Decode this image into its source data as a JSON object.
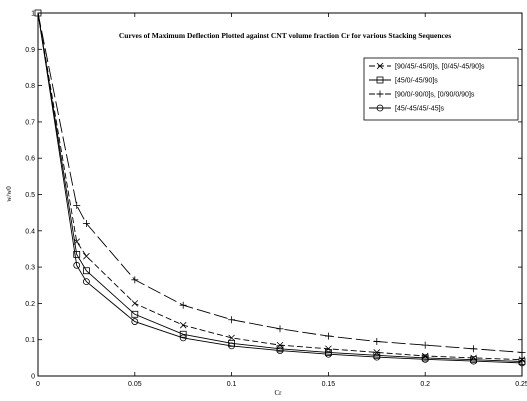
{
  "chart_data": {
    "type": "line",
    "title": "Curves of Maximum Deflection Plotted against CNT volume fraction Cr for various Stacking Sequences",
    "xlabel": "Cr",
    "ylabel": "w/w0",
    "xlim": [
      0,
      0.25
    ],
    "ylim": [
      0,
      1
    ],
    "xticks": [
      0,
      0.05,
      0.1,
      0.15,
      0.2,
      0.25
    ],
    "xtick_labels": [
      "0",
      "0.05",
      "0.1",
      "0.15",
      "0.2",
      "0.25"
    ],
    "yticks": [
      0,
      0.1,
      0.2,
      0.3,
      0.4,
      0.5,
      0.6,
      0.7,
      0.8,
      0.9,
      1
    ],
    "ytick_labels": [
      "0",
      "0.1",
      "0.2",
      "0.3",
      "0.4",
      "0.5",
      "0.6",
      "0.7",
      "0.8",
      "0.9",
      "1"
    ],
    "grid": false,
    "legend_position": "top-right",
    "x": [
      0,
      0.02,
      0.025,
      0.05,
      0.075,
      0.1,
      0.125,
      0.15,
      0.175,
      0.2,
      0.225,
      0.25
    ],
    "series": [
      {
        "name": "[90/45/-45/0]s, [0/45/-45/90]s",
        "marker": "x",
        "dash": "6,3",
        "values": [
          1,
          0.37,
          0.33,
          0.2,
          0.14,
          0.105,
          0.085,
          0.075,
          0.065,
          0.055,
          0.05,
          0.045
        ]
      },
      {
        "name": "[45/0/-45/90]s",
        "marker": "square",
        "dash": "",
        "values": [
          1,
          0.335,
          0.29,
          0.17,
          0.115,
          0.09,
          0.075,
          0.065,
          0.057,
          0.05,
          0.045,
          0.04
        ]
      },
      {
        "name": "[90/0/-90/0]s, [0/90/0/90]s",
        "marker": "plus",
        "dash": "14,4",
        "values": [
          1,
          0.47,
          0.42,
          0.265,
          0.195,
          0.155,
          0.13,
          0.11,
          0.095,
          0.085,
          0.075,
          0.065
        ]
      },
      {
        "name": "[45/-45/45/-45]s",
        "marker": "circle",
        "dash": "",
        "values": [
          1,
          0.305,
          0.26,
          0.15,
          0.105,
          0.083,
          0.07,
          0.06,
          0.052,
          0.046,
          0.041,
          0.036
        ]
      }
    ]
  }
}
